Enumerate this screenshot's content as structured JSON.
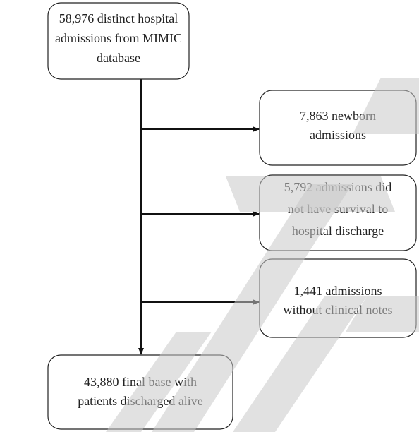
{
  "nodes": [
    {
      "lines": [
        "58,976 distinct hospital",
        "admissions from MIMIC",
        "database"
      ]
    },
    {
      "lines": [
        "7,863 newborn",
        "admissions"
      ]
    },
    {
      "lines": [
        "5,792 admissions did",
        "not have survival to",
        "hospital discharge"
      ]
    },
    {
      "lines": [
        "1,441 admissions",
        "without clinical notes"
      ]
    },
    {
      "lines": [
        "43,880 final base with",
        "patients discharged alive"
      ]
    }
  ]
}
